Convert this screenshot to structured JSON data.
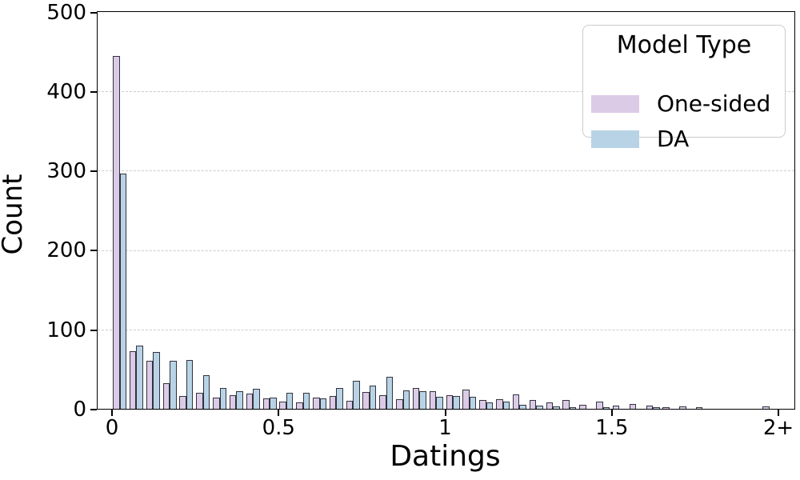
{
  "chart_data": {
    "type": "bar",
    "subtype": "histogram-dodged",
    "title": "",
    "xlabel": "Datings",
    "ylabel": "Count",
    "bin_width": 0.05,
    "x_range": [
      0,
      2
    ],
    "ylim": [
      0,
      500
    ],
    "grid": "horizontal-dashed",
    "bin_starts": [
      0.0,
      0.05,
      0.1,
      0.15,
      0.2,
      0.25,
      0.3,
      0.35,
      0.4,
      0.45,
      0.5,
      0.55,
      0.6,
      0.65,
      0.7,
      0.75,
      0.8,
      0.85,
      0.9,
      0.95,
      1.0,
      1.05,
      1.1,
      1.15,
      1.2,
      1.25,
      1.3,
      1.35,
      1.4,
      1.45,
      1.5,
      1.55,
      1.6,
      1.65,
      1.7,
      1.75,
      1.8,
      1.85,
      1.9,
      1.95
    ],
    "series": [
      {
        "name": "One-sided",
        "color": "#dbcbe7",
        "values": [
          445,
          73,
          60,
          32,
          16,
          20,
          14,
          17,
          19,
          13,
          9,
          8,
          14,
          16,
          10,
          21,
          17,
          12,
          26,
          22,
          17,
          24,
          11,
          12,
          18,
          11,
          8,
          11,
          5,
          9,
          4,
          6,
          4,
          1,
          3,
          1,
          0,
          0,
          0,
          3
        ]
      },
      {
        "name": "DA",
        "color": "#b8d3e6",
        "values": [
          296,
          80,
          72,
          61,
          62,
          42,
          26,
          22,
          25,
          14,
          20,
          20,
          13,
          26,
          35,
          29,
          40,
          23,
          22,
          15,
          16,
          15,
          8,
          9,
          5,
          4,
          3,
          2,
          0,
          1,
          0,
          0,
          1,
          0,
          0,
          0,
          0,
          0,
          0,
          0
        ]
      }
    ],
    "x_ticks": [
      {
        "label": "0",
        "value": 0
      },
      {
        "label": "0.5",
        "value": 0.5
      },
      {
        "label": "1",
        "value": 1
      },
      {
        "label": "1.5",
        "value": 1.5
      },
      {
        "label": "2+",
        "value": 2
      }
    ],
    "y_ticks": [
      {
        "label": "0",
        "value": 0
      },
      {
        "label": "100",
        "value": 100
      },
      {
        "label": "200",
        "value": 200
      },
      {
        "label": "300",
        "value": 300
      },
      {
        "label": "400",
        "value": 400
      },
      {
        "label": "500",
        "value": 500
      }
    ],
    "legend": {
      "title": "Model Type",
      "position": "upper-right"
    }
  },
  "colors": {
    "bar_edge": "#33333d",
    "grid": "#cccccc",
    "spine": "#000000",
    "background": "#ffffff",
    "legend_border": "#cccccc"
  }
}
